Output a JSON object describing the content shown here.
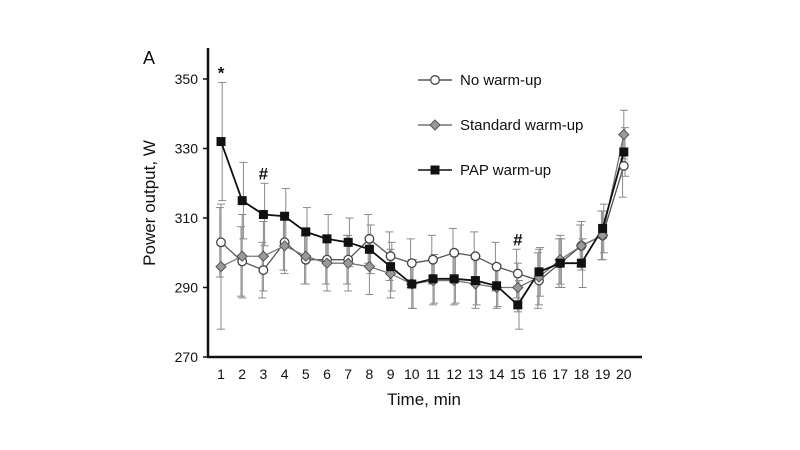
{
  "panel_label": "A",
  "chart_data": {
    "type": "line",
    "xlabel": "Time, min",
    "ylabel": "Power output, W",
    "categories": [
      "1",
      "2",
      "3",
      "4",
      "5",
      "6",
      "7",
      "8",
      "9",
      "10",
      "11",
      "12",
      "13",
      "14",
      "15",
      "16",
      "17",
      "18",
      "19",
      "20"
    ],
    "yticks": [
      270,
      290,
      310,
      330,
      350
    ],
    "ylim": [
      270,
      360
    ],
    "grid": false,
    "legend_placement": "top-right",
    "series": [
      {
        "name": "No warm-up",
        "marker": "open-circle",
        "color": "#555555",
        "values": [
          303,
          297.5,
          295,
          303,
          298,
          298,
          298,
          304,
          299,
          297,
          298,
          300,
          299,
          296,
          294,
          292,
          297,
          302,
          305,
          325
        ],
        "errors": [
          10,
          10,
          8,
          8,
          7,
          7,
          7,
          7,
          7,
          7,
          7,
          7,
          7,
          7,
          7,
          8,
          7,
          6,
          7,
          9
        ]
      },
      {
        "name": "Standard warm-up",
        "marker": "diamond",
        "color": "#777777",
        "values": [
          296,
          299,
          299,
          302,
          299,
          297,
          297,
          296,
          294,
          291,
          292,
          292,
          291,
          290,
          290,
          293,
          298,
          302,
          305,
          334
        ],
        "errors": [
          18,
          12,
          10,
          8,
          8,
          8,
          8,
          8,
          7,
          7,
          7,
          7,
          7,
          6,
          7,
          8,
          7,
          7,
          7,
          7
        ]
      },
      {
        "name": "PAP warm-up",
        "marker": "filled-square",
        "color": "#111111",
        "values": [
          332,
          315,
          311,
          310.5,
          306,
          304,
          303,
          301,
          296,
          291,
          292.5,
          292.5,
          292,
          290.5,
          285,
          294.5,
          297,
          297,
          307,
          329
        ],
        "errors": [
          17,
          11,
          9,
          8,
          7,
          7,
          7,
          7,
          7,
          7,
          7,
          7,
          7,
          6,
          7,
          7,
          7,
          7,
          7,
          7
        ]
      }
    ],
    "annotations": [
      {
        "text": "*",
        "x": "1"
      },
      {
        "text": "#",
        "x": "3"
      },
      {
        "text": "#",
        "x": "15"
      }
    ]
  }
}
